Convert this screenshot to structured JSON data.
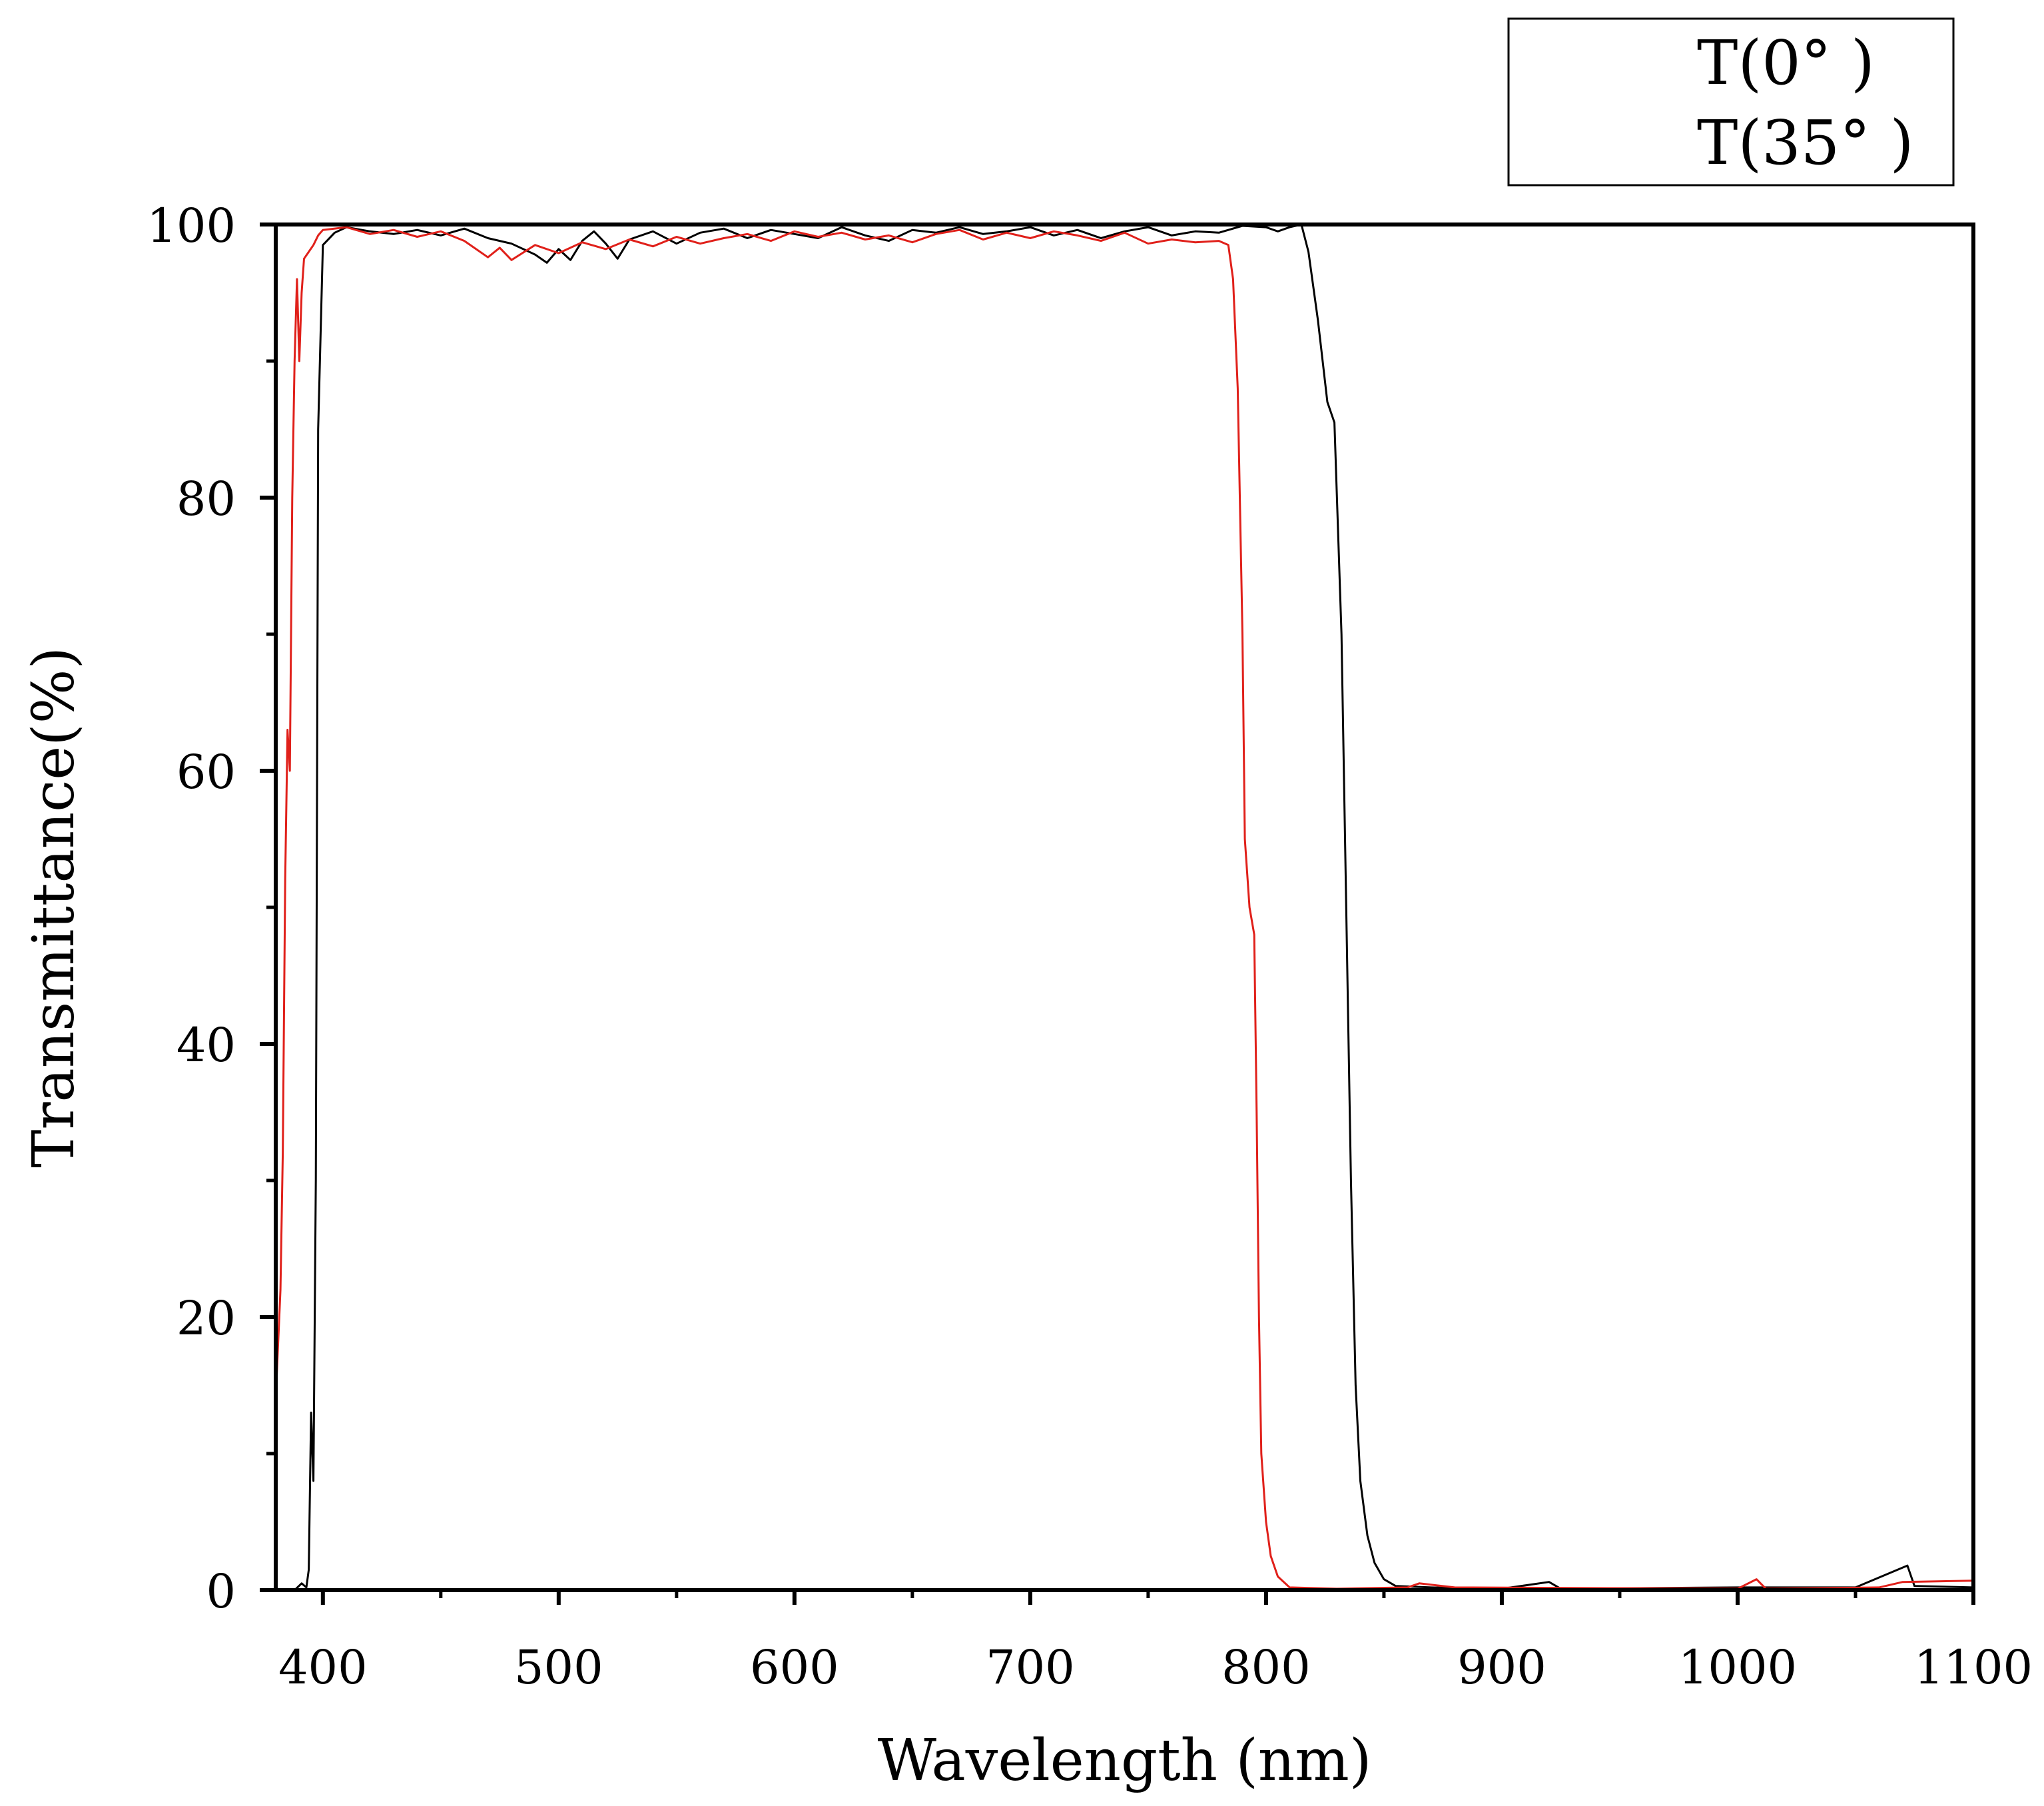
{
  "chart_data": {
    "type": "line",
    "xlabel": "Wavelength (nm)",
    "ylabel": "Transmittance(%)",
    "xlim": [
      380,
      1100
    ],
    "ylim": [
      0,
      100
    ],
    "x_ticks": [
      400,
      500,
      600,
      700,
      800,
      900,
      1000,
      1100
    ],
    "y_ticks": [
      0,
      20,
      40,
      60,
      80,
      100
    ],
    "grid": false,
    "legend_position": "top-right, outside plot",
    "series": [
      {
        "name": "T(0° )",
        "color": "#000000",
        "points": [
          [
            380,
            0
          ],
          [
            388,
            0
          ],
          [
            391,
            0.5
          ],
          [
            393,
            0.2
          ],
          [
            394,
            1.5
          ],
          [
            395,
            13
          ],
          [
            396,
            8
          ],
          [
            397,
            30
          ],
          [
            398,
            85
          ],
          [
            400,
            98.5
          ],
          [
            405,
            99.4
          ],
          [
            410,
            99.8
          ],
          [
            420,
            99.5
          ],
          [
            430,
            99.3
          ],
          [
            440,
            99.6
          ],
          [
            450,
            99.2
          ],
          [
            460,
            99.7
          ],
          [
            470,
            99.0
          ],
          [
            480,
            98.6
          ],
          [
            490,
            97.8
          ],
          [
            495,
            97.2
          ],
          [
            500,
            98.2
          ],
          [
            505,
            97.4
          ],
          [
            510,
            98.8
          ],
          [
            515,
            99.5
          ],
          [
            520,
            98.6
          ],
          [
            525,
            97.5
          ],
          [
            530,
            98.9
          ],
          [
            540,
            99.5
          ],
          [
            550,
            98.6
          ],
          [
            560,
            99.4
          ],
          [
            570,
            99.7
          ],
          [
            580,
            99.0
          ],
          [
            590,
            99.6
          ],
          [
            600,
            99.3
          ],
          [
            610,
            99.0
          ],
          [
            620,
            99.8
          ],
          [
            630,
            99.2
          ],
          [
            640,
            98.8
          ],
          [
            650,
            99.6
          ],
          [
            660,
            99.4
          ],
          [
            670,
            99.8
          ],
          [
            680,
            99.3
          ],
          [
            690,
            99.5
          ],
          [
            700,
            99.8
          ],
          [
            710,
            99.2
          ],
          [
            720,
            99.6
          ],
          [
            730,
            99.0
          ],
          [
            740,
            99.5
          ],
          [
            750,
            99.8
          ],
          [
            760,
            99.2
          ],
          [
            770,
            99.5
          ],
          [
            780,
            99.4
          ],
          [
            790,
            99.9
          ],
          [
            800,
            99.8
          ],
          [
            805,
            99.5
          ],
          [
            810,
            99.8
          ],
          [
            815,
            100
          ],
          [
            818,
            98
          ],
          [
            822,
            93
          ],
          [
            826,
            87
          ],
          [
            829,
            85.5
          ],
          [
            832,
            70
          ],
          [
            834,
            50
          ],
          [
            836,
            30
          ],
          [
            838,
            15
          ],
          [
            840,
            8
          ],
          [
            843,
            4
          ],
          [
            846,
            2
          ],
          [
            850,
            0.8
          ],
          [
            855,
            0.3
          ],
          [
            870,
            0.2
          ],
          [
            900,
            0.1
          ],
          [
            920,
            0.6
          ],
          [
            925,
            0.1
          ],
          [
            1000,
            0.2
          ],
          [
            1050,
            0.2
          ],
          [
            1072,
            1.8
          ],
          [
            1075,
            0.3
          ],
          [
            1100,
            0.2
          ]
        ]
      },
      {
        "name": "T(35° )",
        "color": "#e0201a",
        "points": [
          [
            380,
            14
          ],
          [
            382,
            22
          ],
          [
            383,
            32
          ],
          [
            384,
            52
          ],
          [
            385,
            63
          ],
          [
            386,
            60
          ],
          [
            387,
            80
          ],
          [
            388,
            90
          ],
          [
            389,
            96
          ],
          [
            390,
            90
          ],
          [
            391,
            95
          ],
          [
            392,
            97.5
          ],
          [
            394,
            98
          ],
          [
            396,
            98.5
          ],
          [
            398,
            99.2
          ],
          [
            400,
            99.6
          ],
          [
            410,
            99.8
          ],
          [
            420,
            99.3
          ],
          [
            430,
            99.6
          ],
          [
            440,
            99.1
          ],
          [
            450,
            99.5
          ],
          [
            460,
            98.8
          ],
          [
            470,
            97.6
          ],
          [
            475,
            98.3
          ],
          [
            480,
            97.4
          ],
          [
            490,
            98.5
          ],
          [
            500,
            97.9
          ],
          [
            510,
            98.7
          ],
          [
            520,
            98.2
          ],
          [
            530,
            98.9
          ],
          [
            540,
            98.4
          ],
          [
            550,
            99.1
          ],
          [
            560,
            98.6
          ],
          [
            570,
            99.0
          ],
          [
            580,
            99.3
          ],
          [
            590,
            98.8
          ],
          [
            600,
            99.5
          ],
          [
            610,
            99.1
          ],
          [
            620,
            99.4
          ],
          [
            630,
            98.9
          ],
          [
            640,
            99.2
          ],
          [
            650,
            98.7
          ],
          [
            660,
            99.3
          ],
          [
            670,
            99.6
          ],
          [
            680,
            98.9
          ],
          [
            690,
            99.4
          ],
          [
            700,
            99.0
          ],
          [
            710,
            99.5
          ],
          [
            720,
            99.2
          ],
          [
            730,
            98.8
          ],
          [
            740,
            99.4
          ],
          [
            750,
            98.6
          ],
          [
            760,
            98.9
          ],
          [
            770,
            98.7
          ],
          [
            780,
            98.8
          ],
          [
            784,
            98.5
          ],
          [
            786,
            96
          ],
          [
            788,
            88
          ],
          [
            790,
            70
          ],
          [
            791,
            55
          ],
          [
            793,
            50
          ],
          [
            795,
            48
          ],
          [
            796,
            35
          ],
          [
            797,
            20
          ],
          [
            798,
            10
          ],
          [
            800,
            5
          ],
          [
            802,
            2.5
          ],
          [
            805,
            1
          ],
          [
            810,
            0.2
          ],
          [
            830,
            0.1
          ],
          [
            860,
            0.2
          ],
          [
            865,
            0.5
          ],
          [
            880,
            0.2
          ],
          [
            1000,
            0.1
          ],
          [
            1008,
            0.8
          ],
          [
            1012,
            0.1
          ],
          [
            1060,
            0.2
          ],
          [
            1070,
            0.6
          ],
          [
            1100,
            0.7
          ]
        ]
      }
    ]
  }
}
